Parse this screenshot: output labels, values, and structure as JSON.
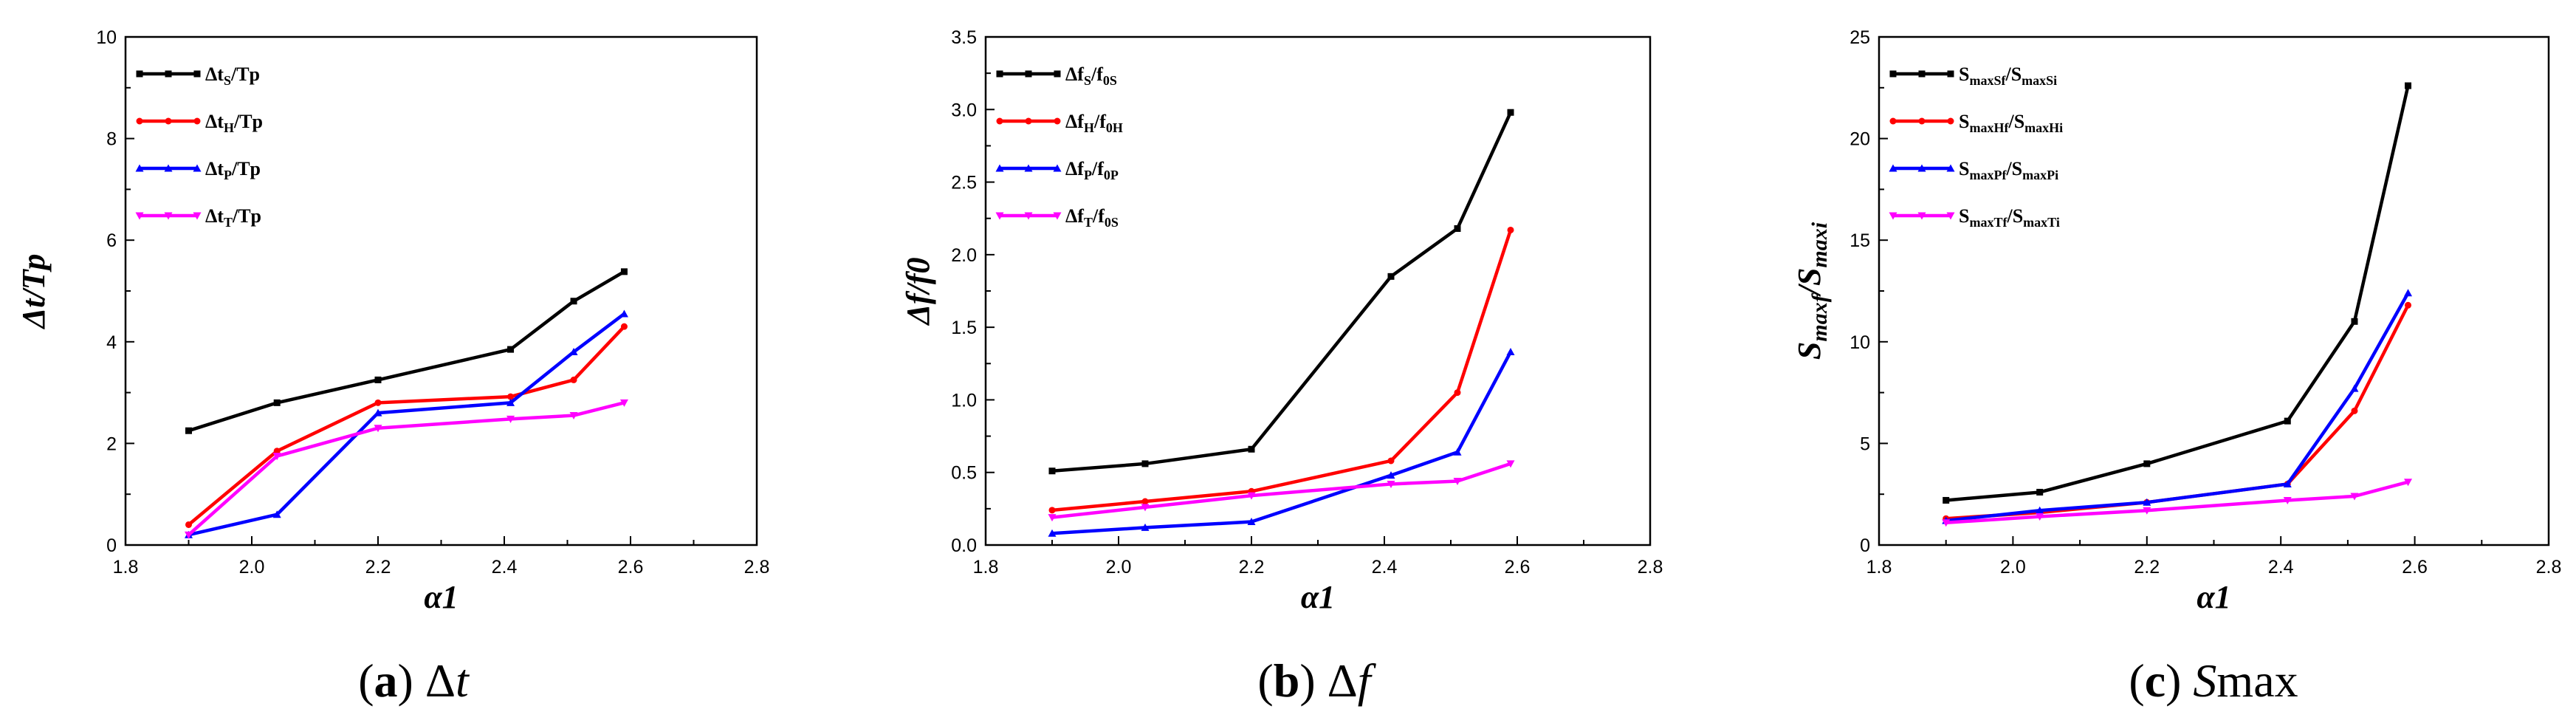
{
  "chart_data": [
    {
      "type": "line",
      "panel": "a",
      "caption": {
        "letter": "(a)",
        "symbol": "Δt"
      },
      "xlabel": "α1",
      "ylabel": "Δt/Tp",
      "xlim": [
        1.8,
        2.8
      ],
      "xticks": [
        1.8,
        2.0,
        2.2,
        2.4,
        2.6,
        2.8
      ],
      "xtick_labels": [
        "1.8",
        "2.0",
        "2.2",
        "2.4",
        "2.6",
        "2.8"
      ],
      "ylim": [
        0,
        10
      ],
      "yticks": [
        0,
        2,
        4,
        6,
        8,
        10
      ],
      "ytick_labels": [
        "0",
        "2",
        "4",
        "6",
        "8",
        "10"
      ],
      "legend_position": "top-left",
      "x": [
        1.9,
        2.04,
        2.2,
        2.41,
        2.51,
        2.59
      ],
      "series": [
        {
          "name": "Δt_S/Tp",
          "label_main": "Δt",
          "label_sub": "S",
          "label_rest": "/Tp",
          "label_sub2": "",
          "color": "#000000",
          "marker": "square",
          "values": [
            2.25,
            2.8,
            3.25,
            3.85,
            4.8,
            5.38
          ]
        },
        {
          "name": "Δt_H/Tp",
          "label_main": "Δt",
          "label_sub": "H",
          "label_rest": "/Tp",
          "label_sub2": "",
          "color": "#ff0000",
          "marker": "circle",
          "values": [
            0.4,
            1.85,
            2.8,
            2.92,
            3.25,
            4.3
          ]
        },
        {
          "name": "Δt_P/Tp",
          "label_main": "Δt",
          "label_sub": "P",
          "label_rest": "/Tp",
          "label_sub2": "",
          "color": "#0000ff",
          "marker": "triangle-up",
          "values": [
            0.2,
            0.6,
            2.6,
            2.8,
            3.8,
            4.55
          ]
        },
        {
          "name": "Δt_T/Tp",
          "label_main": "Δt",
          "label_sub": "T",
          "label_rest": "/Tp",
          "label_sub2": "",
          "color": "#ff00ff",
          "marker": "triangle-down",
          "values": [
            0.2,
            1.75,
            2.3,
            2.48,
            2.55,
            2.8
          ]
        }
      ]
    },
    {
      "type": "line",
      "panel": "b",
      "caption": {
        "letter": "(b)",
        "symbol": "Δf"
      },
      "xlabel": "α1",
      "ylabel": "Δf/f0",
      "xlim": [
        1.8,
        2.8
      ],
      "xticks": [
        1.8,
        2.0,
        2.2,
        2.4,
        2.6,
        2.8
      ],
      "xtick_labels": [
        "1.8",
        "2.0",
        "2.2",
        "2.4",
        "2.6",
        "2.8"
      ],
      "ylim": [
        0,
        3.5
      ],
      "yticks": [
        0,
        0.5,
        1.0,
        1.5,
        2.0,
        2.5,
        3.0,
        3.5
      ],
      "ytick_labels": [
        "0.0",
        "0.5",
        "1.0",
        "1.5",
        "2.0",
        "2.5",
        "3.0",
        "3.5"
      ],
      "legend_position": "top-left",
      "x": [
        1.9,
        2.04,
        2.2,
        2.41,
        2.51,
        2.59
      ],
      "series": [
        {
          "name": "Δf_S/f_0S",
          "label_main": "Δf",
          "label_sub": "S",
          "label_rest": "/f",
          "label_sub2": "0S",
          "color": "#000000",
          "marker": "square",
          "values": [
            0.51,
            0.56,
            0.66,
            1.85,
            2.18,
            2.98
          ]
        },
        {
          "name": "Δf_H/f_0H",
          "label_main": "Δf",
          "label_sub": "H",
          "label_rest": "/f",
          "label_sub2": "0H",
          "color": "#ff0000",
          "marker": "circle",
          "values": [
            0.24,
            0.3,
            0.37,
            0.58,
            1.05,
            2.17
          ]
        },
        {
          "name": "Δf_P/f_0P",
          "label_main": "Δf",
          "label_sub": "P",
          "label_rest": "/f",
          "label_sub2": "0P",
          "color": "#0000ff",
          "marker": "triangle-up",
          "values": [
            0.08,
            0.12,
            0.16,
            0.48,
            0.64,
            1.33
          ]
        },
        {
          "name": "Δf_T/f_0S",
          "label_main": "Δf",
          "label_sub": "T",
          "label_rest": "/f",
          "label_sub2": "0S",
          "color": "#ff00ff",
          "marker": "triangle-down",
          "values": [
            0.19,
            0.26,
            0.34,
            0.42,
            0.44,
            0.56
          ]
        }
      ]
    },
    {
      "type": "line",
      "panel": "c",
      "caption": {
        "letter": "(c)",
        "symbol": "Smax"
      },
      "xlabel": "α1",
      "ylabel": "Smaxf/Smaxi",
      "xlim": [
        1.8,
        2.8
      ],
      "xticks": [
        1.8,
        2.0,
        2.2,
        2.4,
        2.6,
        2.8
      ],
      "xtick_labels": [
        "1.8",
        "2.0",
        "2.2",
        "2.4",
        "2.6",
        "2.8"
      ],
      "ylim": [
        0,
        25
      ],
      "yticks": [
        0,
        5,
        10,
        15,
        20,
        25
      ],
      "ytick_labels": [
        "0",
        "5",
        "10",
        "15",
        "20",
        "25"
      ],
      "legend_position": "top-left",
      "x": [
        1.9,
        2.04,
        2.2,
        2.41,
        2.51,
        2.59
      ],
      "series": [
        {
          "name": "S_maxSf/S_maxSi",
          "label_main": "S",
          "label_sub": "maxSf",
          "label_rest": "/S",
          "label_sub2": "maxSi",
          "color": "#000000",
          "marker": "square",
          "values": [
            2.2,
            2.6,
            4.0,
            6.1,
            11.0,
            22.6
          ]
        },
        {
          "name": "S_maxHf/S_maxHi",
          "label_main": "S",
          "label_sub": "maxHf",
          "label_rest": "/S",
          "label_sub2": "maxHi",
          "color": "#ff0000",
          "marker": "circle",
          "values": [
            1.3,
            1.6,
            2.1,
            3.0,
            6.6,
            11.8
          ]
        },
        {
          "name": "S_maxPf/S_maxPi",
          "label_main": "S",
          "label_sub": "maxPf",
          "label_rest": "/S",
          "label_sub2": "maxPi",
          "color": "#0000ff",
          "marker": "triangle-up",
          "values": [
            1.2,
            1.7,
            2.1,
            3.0,
            7.7,
            12.4
          ]
        },
        {
          "name": "S_maxTf/S_maxTi",
          "label_main": "S",
          "label_sub": "maxTf",
          "label_rest": "/S",
          "label_sub2": "maxTi",
          "color": "#ff00ff",
          "marker": "triangle-down",
          "values": [
            1.1,
            1.4,
            1.7,
            2.2,
            2.4,
            3.1
          ]
        }
      ]
    }
  ]
}
